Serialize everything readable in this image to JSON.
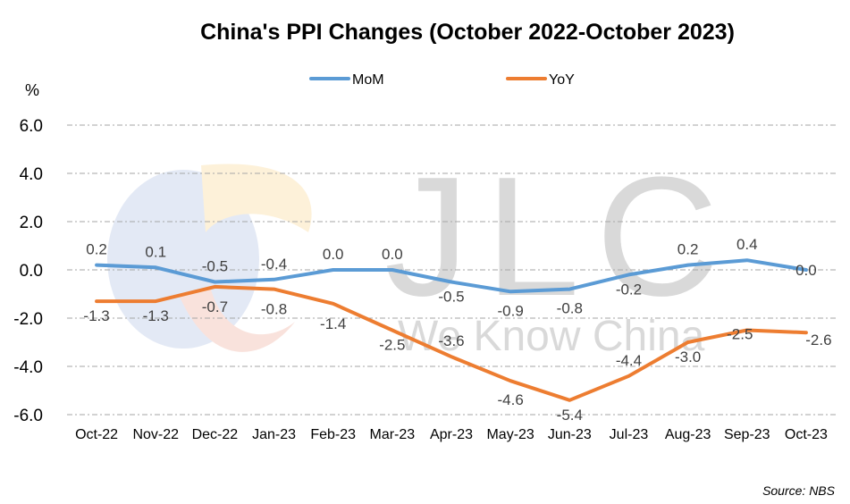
{
  "chart_data": {
    "type": "line",
    "title": "China's PPI Changes (October 2022-October 2023)",
    "ylabel": "%",
    "ylim": [
      -6.0,
      6.0
    ],
    "yticks": [
      "6.0",
      "4.0",
      "2.0",
      "0.0",
      "-2.0",
      "-4.0",
      "-6.0"
    ],
    "ytick_values": [
      6,
      4,
      2,
      0,
      -2,
      -4,
      -6
    ],
    "grid": "horizontal-dashed",
    "legend": "top-center",
    "categories": [
      "Oct-22",
      "Nov-22",
      "Dec-22",
      "Jan-23",
      "Feb-23",
      "Mar-23",
      "Apr-23",
      "May-23",
      "Jun-23",
      "Jul-23",
      "Aug-23",
      "Sep-23",
      "Oct-23"
    ],
    "series": [
      {
        "name": "MoM",
        "color": "#5b9bd5",
        "values": [
          0.2,
          0.1,
          -0.5,
          -0.4,
          0.0,
          0.0,
          -0.5,
          -0.9,
          -0.8,
          -0.2,
          0.2,
          0.4,
          0.0
        ],
        "labels": [
          "0.2",
          "0.1",
          "-0.5",
          "-0.4",
          "0.0",
          "0.0",
          "-0.5",
          "-0.9",
          "-0.8",
          "-0.2",
          "0.2",
          "0.4",
          "0.0"
        ]
      },
      {
        "name": "YoY",
        "color": "#ed7d31",
        "values": [
          -1.3,
          -1.3,
          -0.7,
          -0.8,
          -1.4,
          -2.5,
          -3.6,
          -4.6,
          -5.4,
          -4.4,
          -3.0,
          -2.5,
          -2.6
        ],
        "labels": [
          "-1.3",
          "-1.3",
          "-0.7",
          "-0.8",
          "-1.4",
          "-2.5",
          "-3.6",
          "-4.6",
          "-5.4",
          "-4.4",
          "-3.0",
          "-2.5",
          "-2.6"
        ]
      }
    ],
    "source": "Source: NBS"
  },
  "watermark": {
    "logo": "JLC",
    "tagline": "We Know China",
    "colors": [
      "#dfe6f3",
      "#fdf1d6",
      "#f7dcd6",
      "#e5e5e5"
    ]
  }
}
